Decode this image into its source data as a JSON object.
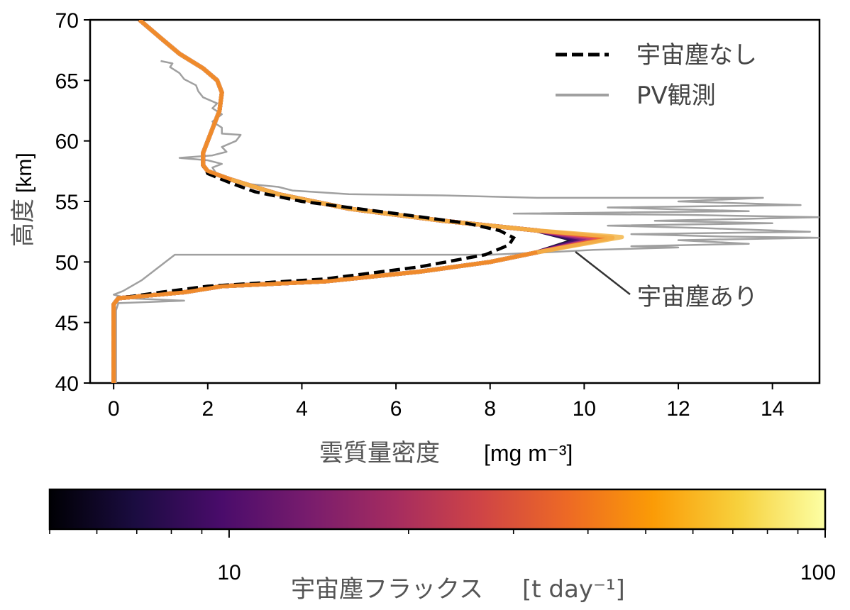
{
  "chart_data": {
    "type": "line",
    "xlabel": "雲質量密度",
    "xunit": "[mg m⁻³]",
    "ylabel": "高度",
    "yunit": "[km]",
    "xlim": [
      -0.5,
      15
    ],
    "ylim": [
      40,
      70
    ],
    "xticks": [
      0,
      2,
      4,
      6,
      8,
      10,
      12,
      14
    ],
    "yticks": [
      40,
      45,
      50,
      55,
      60,
      65,
      70
    ],
    "legend": {
      "placement": "top-right",
      "entries": [
        {
          "label": "宇宙塵なし",
          "style": "dashed",
          "color": "#000000"
        },
        {
          "label": "PV観測",
          "style": "solid",
          "color": "#a0a0a0"
        }
      ]
    },
    "annotation": {
      "text": "宇宙塵あり",
      "points_to": {
        "x": 9.8,
        "y": 50.8
      }
    },
    "series": [
      {
        "name": "宇宙塵なし",
        "color": "#000000",
        "style": "dashed",
        "points": [
          [
            0,
            40
          ],
          [
            0,
            45
          ],
          [
            0,
            46.5
          ],
          [
            0.1,
            47
          ],
          [
            1.0,
            47.5
          ],
          [
            2.0,
            48
          ],
          [
            4.5,
            48.6
          ],
          [
            6.5,
            49.6
          ],
          [
            7.9,
            50.6
          ],
          [
            8.4,
            51.4
          ],
          [
            8.5,
            52
          ],
          [
            8.2,
            52.6
          ],
          [
            7.5,
            53.2
          ],
          [
            6.0,
            54
          ],
          [
            4.0,
            55
          ],
          [
            3.0,
            55.8
          ],
          [
            2.5,
            56.5
          ],
          [
            2.0,
            57.3
          ],
          [
            1.9,
            58
          ],
          [
            1.9,
            58.6
          ]
        ]
      },
      {
        "name": "宇宙塵あり",
        "colorbar_range": [
          5,
          100
        ],
        "members": [
          {
            "flux": 5,
            "color": "#000004",
            "peak": [
              9.8,
              51.8
            ]
          },
          {
            "flux": 10,
            "color": "#1b0c41",
            "peak": [
              9.85,
              51.8
            ]
          },
          {
            "flux": 15,
            "color": "#3b0f70",
            "peak": [
              9.9,
              51.8
            ]
          },
          {
            "flux": 20,
            "color": "#57106e",
            "peak": [
              10.0,
              51.85
            ]
          },
          {
            "flux": 30,
            "color": "#8c2981",
            "peak": [
              10.15,
              51.85
            ]
          },
          {
            "flux": 40,
            "color": "#b73779",
            "peak": [
              10.3,
              51.9
            ]
          },
          {
            "flux": 50,
            "color": "#de4968",
            "peak": [
              10.45,
              51.95
            ]
          },
          {
            "flux": 70,
            "color": "#f1711f",
            "peak": [
              10.6,
              52.0
            ]
          },
          {
            "flux": 100,
            "color": "#f3b64a",
            "peak": [
              10.8,
              52.05
            ]
          }
        ],
        "points_below": [
          [
            0,
            40
          ],
          [
            0,
            45
          ],
          [
            0,
            46.5
          ],
          [
            0.1,
            47
          ],
          [
            1.5,
            47.5
          ],
          [
            2.3,
            48
          ],
          [
            4.5,
            48.4
          ],
          [
            6.5,
            49.2
          ],
          [
            8.0,
            50
          ],
          [
            9.0,
            50.8
          ]
        ],
        "points_above": [
          [
            9.0,
            52.6
          ],
          [
            7.0,
            53.4
          ],
          [
            5.0,
            54.4
          ],
          [
            3.5,
            55.6
          ],
          [
            2.5,
            56.8
          ],
          [
            2.0,
            57.5
          ],
          [
            1.9,
            58.0
          ],
          [
            1.9,
            59.0
          ],
          [
            2.0,
            60.0
          ],
          [
            2.1,
            61.0
          ],
          [
            2.25,
            62.5
          ],
          [
            2.3,
            64.0
          ],
          [
            2.2,
            65.0
          ],
          [
            1.9,
            66.0
          ],
          [
            1.4,
            67.2
          ],
          [
            1.0,
            68.5
          ],
          [
            0.55,
            70.0
          ]
        ]
      },
      {
        "name": "PV観測",
        "color": "#a0a0a0",
        "style": "solid",
        "points": [
          [
            0.05,
            40
          ],
          [
            0.05,
            46
          ],
          [
            0.1,
            46.6
          ],
          [
            1.5,
            46.8
          ],
          [
            0.3,
            47
          ],
          [
            0,
            47.3
          ],
          [
            0.2,
            47.6
          ],
          [
            0.6,
            48.5
          ],
          [
            1.3,
            50.6
          ],
          [
            8.0,
            50.6
          ],
          [
            9.2,
            50.8
          ],
          [
            10.2,
            51.0
          ],
          [
            12.0,
            51.2
          ],
          [
            11.0,
            51.3
          ],
          [
            13.5,
            51.5
          ],
          [
            12.0,
            51.8
          ],
          [
            15,
            52.0
          ],
          [
            13.0,
            52.1
          ],
          [
            11.0,
            52.3
          ],
          [
            14.8,
            52.5
          ],
          [
            12.5,
            52.8
          ],
          [
            10.5,
            53.0
          ],
          [
            14.0,
            53.2
          ],
          [
            11.5,
            53.4
          ],
          [
            15,
            53.7
          ],
          [
            12.0,
            53.9
          ],
          [
            8.5,
            54.0
          ],
          [
            13.5,
            54.2
          ],
          [
            10.5,
            54.5
          ],
          [
            14.6,
            54.7
          ],
          [
            12.0,
            55.0
          ],
          [
            13.8,
            55.3
          ],
          [
            9.0,
            55.3
          ],
          [
            7.0,
            55.5
          ],
          [
            5.0,
            55.6
          ],
          [
            3.8,
            55.9
          ],
          [
            3.5,
            56.2
          ],
          [
            2.7,
            56.5
          ],
          [
            2.6,
            56.8
          ],
          [
            2.2,
            57.2
          ],
          [
            2.1,
            57.8
          ],
          [
            2.3,
            58.1
          ],
          [
            2.0,
            58.4
          ],
          [
            1.4,
            58.6
          ],
          [
            2.1,
            58.8
          ],
          [
            2.4,
            59.1
          ],
          [
            2.3,
            59.5
          ],
          [
            2.6,
            60.0
          ],
          [
            2.7,
            60.5
          ],
          [
            2.3,
            60.6
          ],
          [
            2.3,
            61.1
          ],
          [
            2.1,
            61.6
          ],
          [
            2.3,
            62.2
          ],
          [
            2.1,
            62.7
          ],
          [
            2.2,
            63.1
          ],
          [
            1.9,
            63.6
          ],
          [
            1.8,
            64.1
          ],
          [
            1.75,
            64.6
          ],
          [
            1.5,
            65.1
          ],
          [
            1.4,
            65.6
          ],
          [
            1.2,
            66.1
          ],
          [
            1.25,
            66.4
          ],
          [
            1.0,
            66.6
          ]
        ]
      }
    ],
    "colorbar": {
      "label": "宇宙塵フラックス",
      "unit": "[t day⁻¹]",
      "scale": "log",
      "range": [
        5,
        100
      ],
      "tick_labels": [
        "10",
        "100"
      ],
      "tick_values": [
        10,
        100
      ],
      "colormap": "inferno",
      "stops": [
        "#000004",
        "#1b0c41",
        "#4a0c6b",
        "#781c6d",
        "#a52c60",
        "#cf4446",
        "#ed6925",
        "#fb9b06",
        "#f7d13d",
        "#fcffa4"
      ]
    }
  }
}
